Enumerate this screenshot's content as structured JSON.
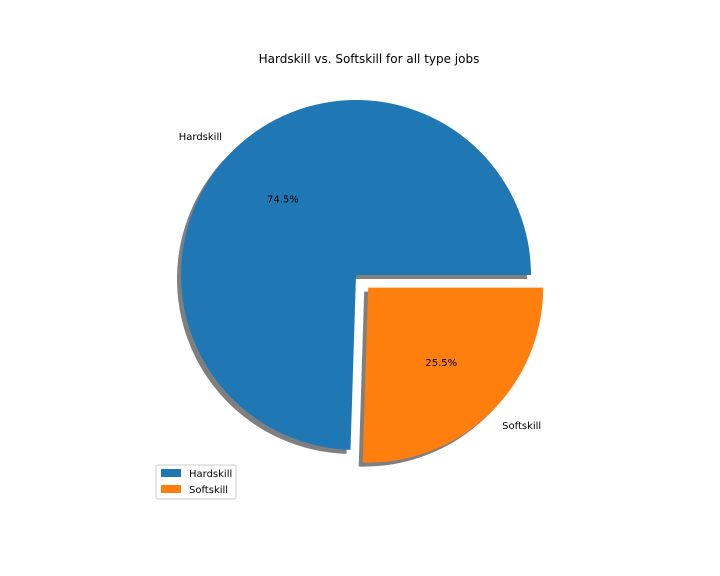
{
  "chart_data": {
    "type": "pie",
    "title": "Hardskill vs. Softskill for all type jobs",
    "slices": [
      {
        "label": "Hardskill",
        "value": 74.5,
        "pct_label": "74.5%",
        "color": "#1f77b4",
        "explode": false
      },
      {
        "label": "Softskill",
        "value": 25.5,
        "pct_label": "25.5%",
        "color": "#ff7f0e",
        "explode": true
      }
    ],
    "shadow": true,
    "legend": {
      "placement": "lower-left",
      "entries": [
        "Hardskill",
        "Softskill"
      ]
    }
  }
}
